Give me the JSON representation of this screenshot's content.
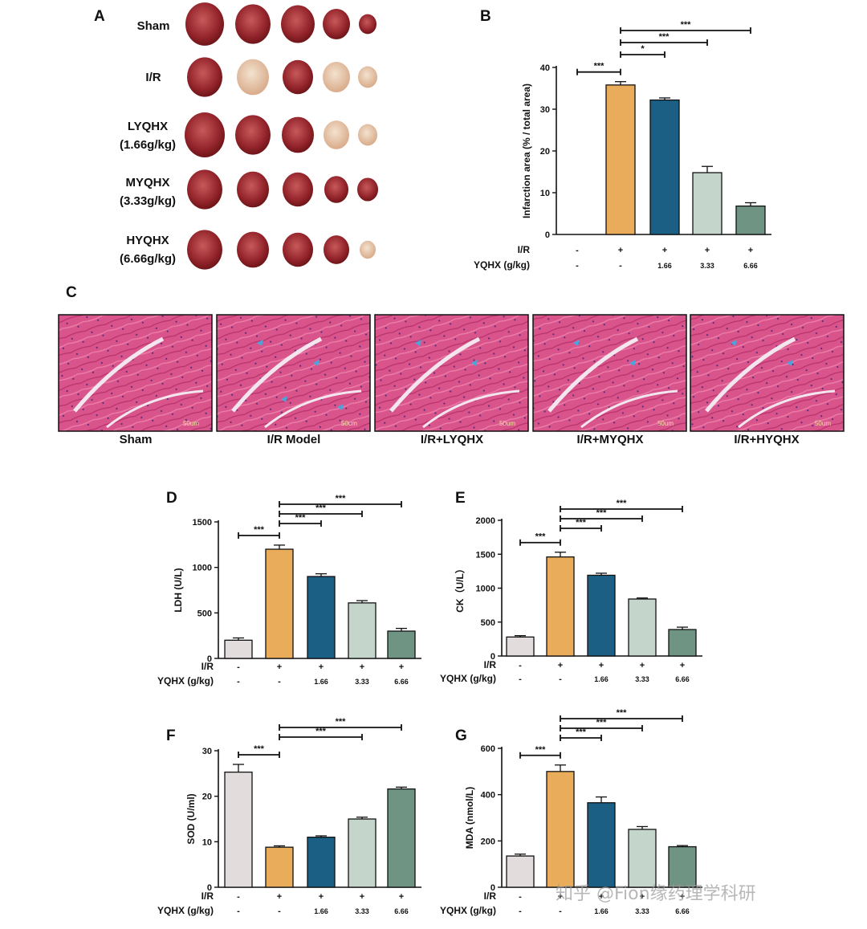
{
  "panels": {
    "A": "A",
    "B": "B",
    "C": "C",
    "D": "D",
    "E": "E",
    "F": "F",
    "G": "G"
  },
  "heart_groups": [
    {
      "line1": "Sham",
      "line2": ""
    },
    {
      "line1": "I/R",
      "line2": ""
    },
    {
      "line1": "LYQHX",
      "line2": "(1.66g/kg)"
    },
    {
      "line1": "MYQHX",
      "line2": "(3.33g/kg)"
    },
    {
      "line1": "HYQHX",
      "line2": "(6.66g/kg)"
    }
  ],
  "histology_labels": [
    "Sham",
    "I/R Model",
    "I/R+LYQHX",
    "I/R+MYQHX",
    "I/R+HYQHX"
  ],
  "scale_bar": "50um",
  "watermark": "知乎 @Fion缘药理学科研",
  "colors": {
    "bar_sham": "#e2dcdc",
    "bar_ir": "#e9ac5a",
    "bar_low": "#1c5f84",
    "bar_mid": "#c4d6cc",
    "bar_high": "#6f9484",
    "tissue": "#d8548a"
  },
  "chart_data": [
    {
      "id": "B",
      "type": "bar",
      "ylabel": "Infarction area (% / total area)",
      "ylim": [
        0,
        40
      ],
      "yticks": [
        0,
        10,
        20,
        30,
        40
      ],
      "row1_label": "I/R",
      "row2_label": "YQHX (g/kg)",
      "row1": [
        "-",
        "+",
        "+",
        "+",
        "+"
      ],
      "row2": [
        "-",
        "-",
        "1.66",
        "3.33",
        "6.66"
      ],
      "values": [
        0,
        35.8,
        32.2,
        14.8,
        6.8
      ],
      "errors": [
        0,
        0.8,
        0.5,
        1.5,
        0.8
      ],
      "significance": [
        {
          "from": 0,
          "to": 1,
          "label": "***"
        },
        {
          "from": 1,
          "to": 2,
          "label": "*"
        },
        {
          "from": 1,
          "to": 3,
          "label": "***"
        },
        {
          "from": 1,
          "to": 4,
          "label": "***"
        }
      ]
    },
    {
      "id": "D",
      "type": "bar",
      "ylabel": "LDH (U/L)",
      "ylim": [
        0,
        1500
      ],
      "yticks": [
        0,
        500,
        1000,
        1500
      ],
      "row1_label": "I/R",
      "row2_label": "YQHX (g/kg)",
      "row1": [
        "-",
        "+",
        "+",
        "+",
        "+"
      ],
      "row2": [
        "-",
        "-",
        "1.66",
        "3.33",
        "6.66"
      ],
      "values": [
        200,
        1200,
        900,
        610,
        300
      ],
      "errors": [
        25,
        45,
        30,
        25,
        30
      ],
      "significance": [
        {
          "from": 0,
          "to": 1,
          "label": "***"
        },
        {
          "from": 1,
          "to": 2,
          "label": "***"
        },
        {
          "from": 1,
          "to": 3,
          "label": "***"
        },
        {
          "from": 1,
          "to": 4,
          "label": "***"
        }
      ]
    },
    {
      "id": "E",
      "type": "bar",
      "ylabel": "CK（U/L）",
      "ylim": [
        0,
        2000
      ],
      "yticks": [
        0,
        500,
        1000,
        1500,
        2000
      ],
      "row1_label": "I/R",
      "row2_label": "YQHX (g/kg)",
      "row1": [
        "-",
        "+",
        "+",
        "+",
        "+"
      ],
      "row2": [
        "-",
        "-",
        "1.66",
        "3.33",
        "6.66"
      ],
      "values": [
        280,
        1460,
        1190,
        840,
        390
      ],
      "errors": [
        20,
        70,
        30,
        15,
        35
      ],
      "significance": [
        {
          "from": 0,
          "to": 1,
          "label": "***"
        },
        {
          "from": 1,
          "to": 2,
          "label": "***"
        },
        {
          "from": 1,
          "to": 3,
          "label": "***"
        },
        {
          "from": 1,
          "to": 4,
          "label": "***"
        }
      ]
    },
    {
      "id": "F",
      "type": "bar",
      "ylabel": "SOD (U/ml)",
      "ylim": [
        0,
        30
      ],
      "yticks": [
        0,
        10,
        20,
        30
      ],
      "row1_label": "I/R",
      "row2_label": "YQHX (g/kg)",
      "row1": [
        "-",
        "+",
        "+",
        "+",
        "+"
      ],
      "row2": [
        "-",
        "-",
        "1.66",
        "3.33",
        "6.66"
      ],
      "values": [
        25.3,
        8.8,
        11.0,
        15.0,
        21.6
      ],
      "errors": [
        1.7,
        0.3,
        0.3,
        0.4,
        0.4
      ],
      "significance": [
        {
          "from": 0,
          "to": 1,
          "label": "***"
        },
        {
          "from": 1,
          "to": 3,
          "label": "***"
        },
        {
          "from": 1,
          "to": 4,
          "label": "***"
        }
      ]
    },
    {
      "id": "G",
      "type": "bar",
      "ylabel": "MDA (nmol/L)",
      "ylim": [
        0,
        600
      ],
      "yticks": [
        0,
        200,
        400,
        600
      ],
      "row1_label": "I/R",
      "row2_label": "YQHX (g/kg)",
      "row1": [
        "-",
        "+",
        "+",
        "+",
        "+"
      ],
      "row2": [
        "-",
        "-",
        "1.66",
        "3.33",
        "6.66"
      ],
      "values": [
        135,
        500,
        365,
        250,
        175
      ],
      "errors": [
        8,
        28,
        25,
        12,
        5
      ],
      "significance": [
        {
          "from": 0,
          "to": 1,
          "label": "***"
        },
        {
          "from": 1,
          "to": 2,
          "label": "***"
        },
        {
          "from": 1,
          "to": 3,
          "label": "***"
        },
        {
          "from": 1,
          "to": 4,
          "label": "***"
        }
      ]
    }
  ]
}
